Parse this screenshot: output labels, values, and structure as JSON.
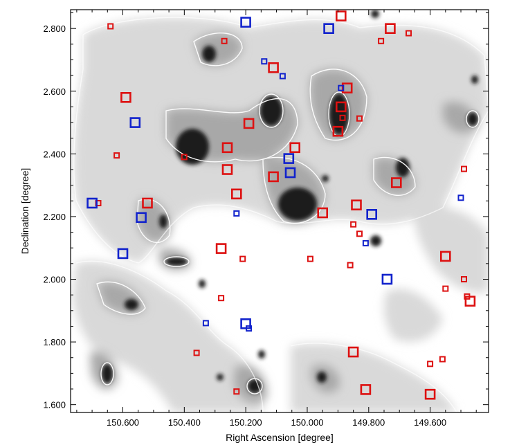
{
  "chart_data": {
    "type": "scatter",
    "title": "",
    "xlabel": "Right Ascension  [degree]",
    "ylabel": "Declination [degree]",
    "xlim": [
      150.77,
      149.41
    ],
    "ylim": [
      1.575,
      2.86
    ],
    "x_axis_reversed": true,
    "x_tick_labels": [
      "150.600",
      "150.400",
      "150.200",
      "150.000",
      "149.800",
      "149.600"
    ],
    "y_tick_labels": [
      "1.600",
      "1.800",
      "2.000",
      "2.200",
      "2.400",
      "2.600",
      "2.800"
    ],
    "x_ticks": [
      150.6,
      150.4,
      150.2,
      150.0,
      149.8,
      149.6
    ],
    "y_ticks": [
      1.6,
      1.8,
      2.0,
      2.2,
      2.4,
      2.6,
      2.8
    ],
    "background": "grayscale density map with white contours",
    "colors": {
      "red": "#dd1111",
      "blue": "#1122cc",
      "map_dark": "#1a1a1a",
      "map_light": "#d8d8d8",
      "contour": "#ffffff"
    },
    "series": [
      {
        "name": "red",
        "color": "#dd1111",
        "points": [
          {
            "ra": 150.64,
            "dec": 2.807,
            "size": "small"
          },
          {
            "ra": 150.27,
            "dec": 2.76,
            "size": "small"
          },
          {
            "ra": 150.59,
            "dec": 2.58,
            "size": "large"
          },
          {
            "ra": 150.62,
            "dec": 2.395,
            "size": "small"
          },
          {
            "ra": 150.4,
            "dec": 2.39,
            "size": "small"
          },
          {
            "ra": 150.19,
            "dec": 2.497,
            "size": "large"
          },
          {
            "ra": 150.11,
            "dec": 2.675,
            "size": "large"
          },
          {
            "ra": 150.26,
            "dec": 2.42,
            "size": "large"
          },
          {
            "ra": 150.26,
            "dec": 2.35,
            "size": "large"
          },
          {
            "ra": 150.23,
            "dec": 2.272,
            "size": "large"
          },
          {
            "ra": 150.11,
            "dec": 2.327,
            "size": "large"
          },
          {
            "ra": 150.04,
            "dec": 2.42,
            "size": "large"
          },
          {
            "ra": 150.52,
            "dec": 2.243,
            "size": "large"
          },
          {
            "ra": 150.68,
            "dec": 2.243,
            "size": "small"
          },
          {
            "ra": 149.89,
            "dec": 2.84,
            "size": "large"
          },
          {
            "ra": 149.87,
            "dec": 2.61,
            "size": "large"
          },
          {
            "ra": 149.89,
            "dec": 2.55,
            "size": "large"
          },
          {
            "ra": 149.885,
            "dec": 2.515,
            "size": "small"
          },
          {
            "ra": 149.9,
            "dec": 2.472,
            "size": "large"
          },
          {
            "ra": 149.83,
            "dec": 2.513,
            "size": "small"
          },
          {
            "ra": 149.73,
            "dec": 2.8,
            "size": "large"
          },
          {
            "ra": 149.76,
            "dec": 2.76,
            "size": "small"
          },
          {
            "ra": 149.67,
            "dec": 2.785,
            "size": "small"
          },
          {
            "ra": 149.95,
            "dec": 2.212,
            "size": "large"
          },
          {
            "ra": 149.84,
            "dec": 2.237,
            "size": "large"
          },
          {
            "ra": 149.85,
            "dec": 2.175,
            "size": "small"
          },
          {
            "ra": 149.83,
            "dec": 2.145,
            "size": "small"
          },
          {
            "ra": 149.71,
            "dec": 2.308,
            "size": "large"
          },
          {
            "ra": 150.28,
            "dec": 2.098,
            "size": "large"
          },
          {
            "ra": 150.21,
            "dec": 2.065,
            "size": "small"
          },
          {
            "ra": 149.99,
            "dec": 2.065,
            "size": "small"
          },
          {
            "ra": 149.86,
            "dec": 2.045,
            "size": "small"
          },
          {
            "ra": 150.28,
            "dec": 1.94,
            "size": "small"
          },
          {
            "ra": 150.36,
            "dec": 1.765,
            "size": "small"
          },
          {
            "ra": 150.23,
            "dec": 1.642,
            "size": "small"
          },
          {
            "ra": 149.85,
            "dec": 1.768,
            "size": "large"
          },
          {
            "ra": 149.81,
            "dec": 1.648,
            "size": "large"
          },
          {
            "ra": 149.6,
            "dec": 1.633,
            "size": "large"
          },
          {
            "ra": 149.6,
            "dec": 1.73,
            "size": "small"
          },
          {
            "ra": 149.56,
            "dec": 1.745,
            "size": "small"
          },
          {
            "ra": 149.55,
            "dec": 2.073,
            "size": "large"
          },
          {
            "ra": 149.55,
            "dec": 1.97,
            "size": "small"
          },
          {
            "ra": 149.49,
            "dec": 2.0,
            "size": "small"
          },
          {
            "ra": 149.48,
            "dec": 1.945,
            "size": "small"
          },
          {
            "ra": 149.47,
            "dec": 1.93,
            "size": "large"
          },
          {
            "ra": 149.49,
            "dec": 2.352,
            "size": "small"
          }
        ]
      },
      {
        "name": "blue",
        "color": "#1122cc",
        "points": [
          {
            "ra": 150.2,
            "dec": 2.82,
            "size": "large"
          },
          {
            "ra": 149.93,
            "dec": 2.8,
            "size": "large"
          },
          {
            "ra": 150.14,
            "dec": 2.695,
            "size": "small"
          },
          {
            "ra": 150.08,
            "dec": 2.648,
            "size": "small"
          },
          {
            "ra": 150.56,
            "dec": 2.5,
            "size": "large"
          },
          {
            "ra": 150.06,
            "dec": 2.385,
            "size": "large"
          },
          {
            "ra": 150.055,
            "dec": 2.34,
            "size": "large"
          },
          {
            "ra": 149.89,
            "dec": 2.61,
            "size": "small"
          },
          {
            "ra": 150.7,
            "dec": 2.243,
            "size": "large"
          },
          {
            "ra": 150.54,
            "dec": 2.197,
            "size": "large"
          },
          {
            "ra": 150.23,
            "dec": 2.21,
            "size": "small"
          },
          {
            "ra": 149.79,
            "dec": 2.207,
            "size": "large"
          },
          {
            "ra": 149.81,
            "dec": 2.115,
            "size": "small"
          },
          {
            "ra": 150.6,
            "dec": 2.082,
            "size": "large"
          },
          {
            "ra": 149.74,
            "dec": 2.0,
            "size": "large"
          },
          {
            "ra": 150.33,
            "dec": 1.86,
            "size": "small"
          },
          {
            "ra": 150.2,
            "dec": 1.858,
            "size": "large"
          },
          {
            "ra": 150.19,
            "dec": 1.843,
            "size": "small"
          },
          {
            "ra": 149.5,
            "dec": 2.26,
            "size": "small"
          }
        ]
      }
    ]
  }
}
